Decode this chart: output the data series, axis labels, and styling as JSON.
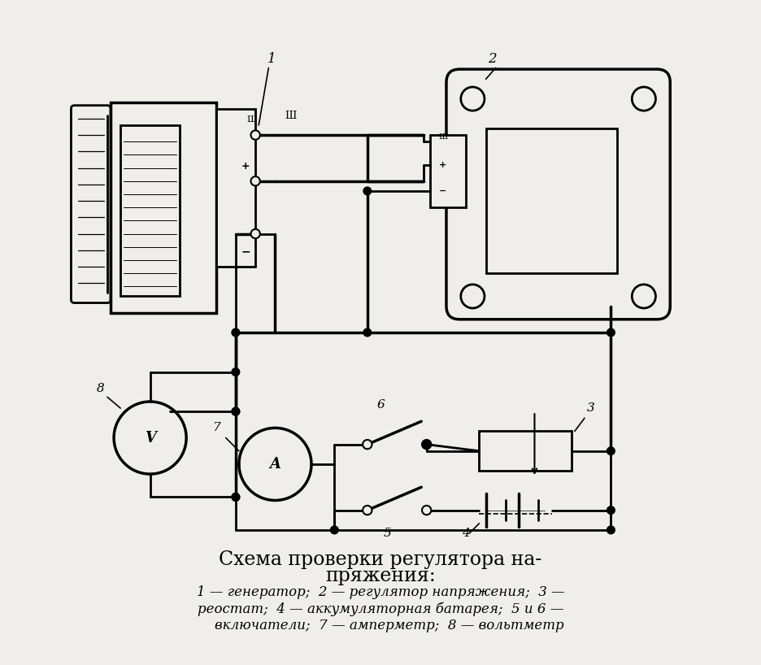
{
  "bg_color": "#f0eeeb",
  "title_line1": "Схема проверки регулятора на-",
  "title_line2": "пряжения:",
  "legend_line1": "1 — генератор;  2 — регулятор напряжения;  3 —",
  "legend_line2": "реостат;  4 — аккумуляторная батарея;  5 и 6 —",
  "legend_line3": "    включатели;  7 — амперметр;  8 — вольтметр"
}
